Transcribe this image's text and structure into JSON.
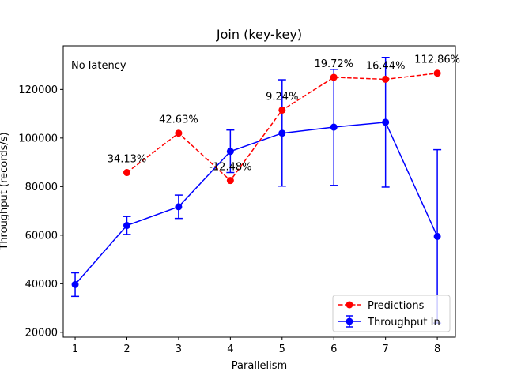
{
  "chart_data": {
    "type": "line",
    "title": "Join (key-key)",
    "xlabel": "Parallelism",
    "ylabel": "Throughput (records/s)",
    "annotation": "No latency",
    "xlim": [
      0.77,
      8.35
    ],
    "ylim": [
      18000,
      138000
    ],
    "xticks": [
      1,
      2,
      3,
      4,
      5,
      6,
      7,
      8
    ],
    "yticks": [
      20000,
      40000,
      60000,
      80000,
      100000,
      120000
    ],
    "legend_position": "lower-right",
    "series": [
      {
        "name": "Predictions",
        "color": "#ff0000",
        "style": "dashed",
        "x": [
          2,
          3,
          4,
          5,
          6,
          7,
          8
        ],
        "y": [
          85800,
          102000,
          82500,
          111500,
          125000,
          124200,
          126700
        ],
        "point_labels": [
          "34.13%",
          "42.63%",
          "-12.48%",
          "9.24%",
          "19.72%",
          "16.44%",
          "112.86%"
        ]
      },
      {
        "name": "Throughput In",
        "color": "#0000ff",
        "style": "solid",
        "x": [
          1,
          2,
          3,
          4,
          5,
          6,
          7,
          8
        ],
        "y": [
          39700,
          64000,
          71700,
          94500,
          102000,
          104500,
          106500,
          59500
        ],
        "yerr_low": [
          34800,
          60300,
          66900,
          85800,
          80200,
          80500,
          79800,
          23800
        ],
        "yerr_high": [
          44500,
          67700,
          76500,
          103300,
          124000,
          128300,
          133200,
          95200
        ]
      }
    ]
  }
}
